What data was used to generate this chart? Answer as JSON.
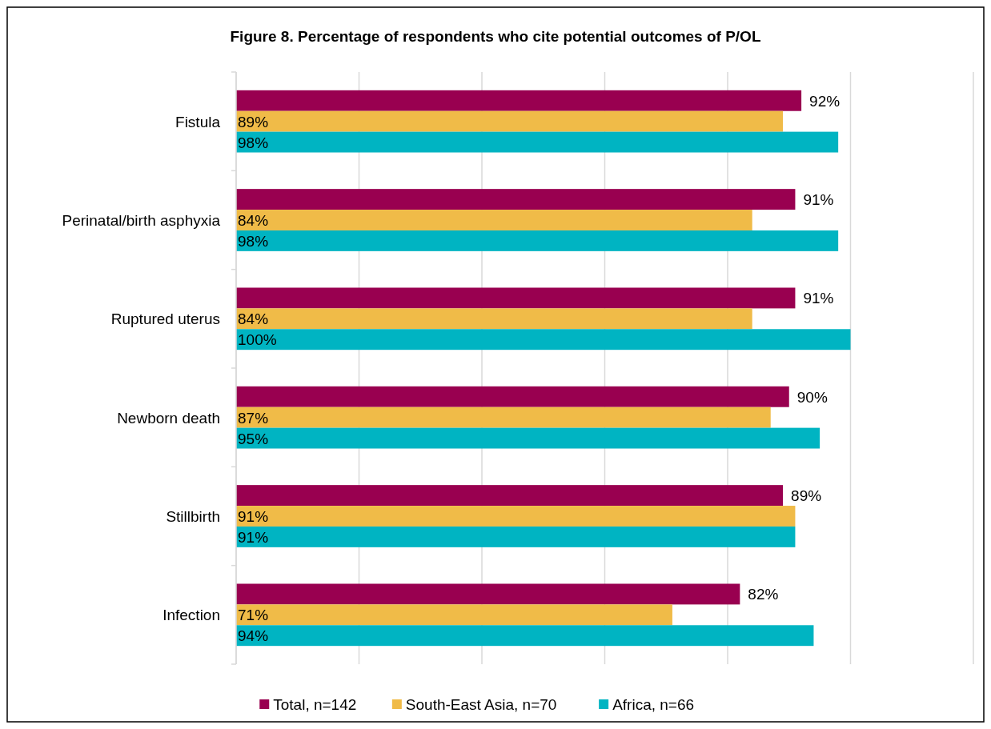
{
  "chart_data": {
    "type": "bar",
    "orientation": "horizontal",
    "title": "Figure 8. Percentage of respondents who cite potential outcomes of P/OL",
    "categories": [
      "Fistula",
      "Perinatal/birth asphyxia",
      "Ruptured uterus",
      "Newborn death",
      "Stillbirth",
      "Infection"
    ],
    "series": [
      {
        "name": "Total, n=142",
        "color": "#990050",
        "values": [
          92,
          91,
          91,
          90,
          89,
          82
        ],
        "value_labels": [
          "92%",
          "91%",
          "91%",
          "90%",
          "89%",
          "82%"
        ]
      },
      {
        "name": "South-East Asia, n=70",
        "color": "#f0bb48",
        "values": [
          89,
          84,
          84,
          87,
          91,
          71
        ],
        "value_labels": [
          "89%",
          "84%",
          "84%",
          "87%",
          "91%",
          "71%"
        ]
      },
      {
        "name": "Africa, n=66",
        "color": "#00b4c2",
        "values": [
          98,
          98,
          100,
          95,
          91,
          94
        ],
        "value_labels": [
          "98%",
          "98%",
          "100%",
          "95%",
          "91%",
          "94%"
        ]
      }
    ],
    "xlim": [
      0,
      120
    ],
    "xticks": [
      {
        "value": 0,
        "label": null
      },
      {
        "value": 20,
        "label": null
      },
      {
        "value": 40,
        "label": null
      },
      {
        "value": 60,
        "label": null
      },
      {
        "value": 80,
        "label": null
      },
      {
        "value": 100,
        "label": null
      },
      {
        "value": 120,
        "label": null
      }
    ],
    "tick_labels": "y",
    "grid": "x",
    "legend": "bottom"
  }
}
